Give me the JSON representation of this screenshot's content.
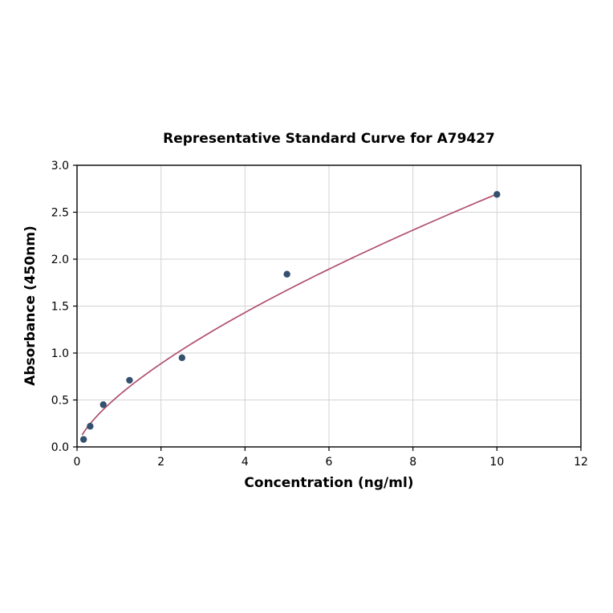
{
  "page": {
    "background": "#ffffff"
  },
  "chart_data": {
    "type": "scatter",
    "title": "Representative Standard Curve for A79427",
    "xlabel": "Concentration (ng/ml)",
    "ylabel": "Absorbance (450nm)",
    "xlim": [
      0,
      12
    ],
    "ylim": [
      0,
      3.0
    ],
    "xticks": [
      0,
      2,
      4,
      6,
      8,
      10,
      12
    ],
    "xtick_labels": [
      "0",
      "2",
      "4",
      "6",
      "8",
      "10",
      "12"
    ],
    "yticks": [
      0.0,
      0.5,
      1.0,
      1.5,
      2.0,
      2.5,
      3.0
    ],
    "ytick_labels": [
      "0.0",
      "0.5",
      "1.0",
      "1.5",
      "2.0",
      "2.5",
      "3.0"
    ],
    "grid": true,
    "legend": "none",
    "points": {
      "x": [
        0.156,
        0.313,
        0.625,
        1.25,
        2.5,
        5,
        10
      ],
      "y": [
        0.08,
        0.22,
        0.45,
        0.71,
        0.95,
        1.84,
        2.69
      ]
    },
    "fit_curve": {
      "type": "power",
      "a": 0.55,
      "b": 0.69,
      "x_start": 0.12,
      "x_end": 10
    },
    "colors": {
      "points": "#35506f",
      "curve": "#b0506e",
      "grid": "#d3d3d3",
      "axis": "#000000"
    }
  }
}
